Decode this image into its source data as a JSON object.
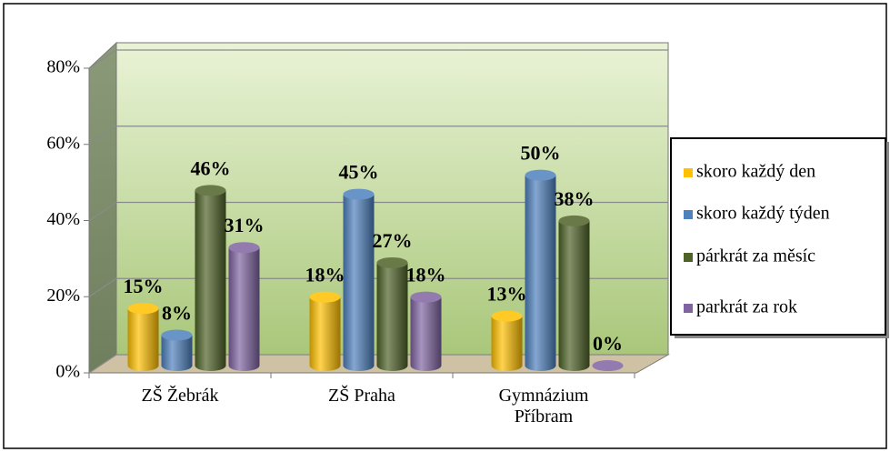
{
  "chart_data": {
    "type": "bar3d",
    "categories": [
      "ZŠ Žebrák",
      "ZŠ Praha",
      "Gymnázium Příbram"
    ],
    "series": [
      {
        "name": "skoro každý den",
        "color": "#ffc000",
        "values": [
          15,
          18,
          13
        ],
        "value_labels": [
          "15%",
          "18%",
          "13%"
        ]
      },
      {
        "name": "skoro každý týden",
        "color": "#4f81bd",
        "values": [
          8,
          45,
          50
        ],
        "value_labels": [
          "8%",
          "45%",
          "50%"
        ]
      },
      {
        "name": "párkrát za měsíc",
        "color": "#4f6228",
        "values": [
          46,
          27,
          38
        ],
        "value_labels": [
          "46%",
          "27%",
          "38%"
        ]
      },
      {
        "name": "parkrát za rok",
        "color": "#8064a2",
        "values": [
          31,
          18,
          0
        ],
        "value_labels": [
          "31%",
          "18%",
          "0%"
        ]
      }
    ],
    "ylim": [
      0,
      80
    ],
    "yticks": [
      {
        "value": 0,
        "label": "0%"
      },
      {
        "value": 20,
        "label": "20%"
      },
      {
        "value": 40,
        "label": "40%"
      },
      {
        "value": 60,
        "label": "60%"
      },
      {
        "value": 80,
        "label": "80%"
      }
    ],
    "grid": true,
    "legend": "right"
  }
}
